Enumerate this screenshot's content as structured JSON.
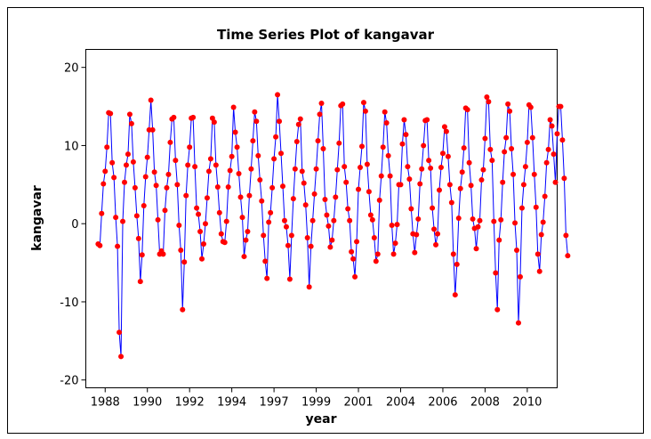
{
  "chart_data": {
    "type": "line",
    "title": "Time Series Plot of kangavar",
    "x_label": "year",
    "y_label": "kangavar",
    "series": [
      {
        "name": "kangavar",
        "color": "#0000ff",
        "marker_color": "#ff0000",
        "values": [
          -2.6,
          -2.8,
          1.3,
          5.1,
          6.7,
          9.8,
          14.2,
          14.1,
          7.8,
          5.9,
          0.8,
          -2.9,
          -13.9,
          -17.0,
          0.3,
          5.3,
          7.5,
          8.9,
          14.0,
          12.8,
          7.9,
          4.6,
          1.0,
          -1.9,
          -7.4,
          -4.0,
          2.3,
          6.0,
          8.5,
          12.0,
          15.8,
          12.0,
          6.6,
          4.9,
          0.5,
          -3.9,
          -3.5,
          -3.9,
          1.7,
          4.6,
          6.3,
          10.4,
          13.4,
          13.6,
          8.1,
          5.0,
          -0.2,
          -3.4,
          -11.0,
          -4.9,
          3.6,
          7.5,
          9.8,
          13.5,
          13.6,
          7.3,
          2.0,
          1.2,
          -1.0,
          -4.5,
          -2.6,
          0.0,
          3.3,
          6.7,
          8.3,
          13.5,
          13.0,
          7.5,
          4.7,
          1.4,
          -1.3,
          -2.3,
          -2.4,
          0.3,
          4.7,
          6.8,
          8.6,
          14.9,
          11.7,
          9.8,
          6.4,
          3.4,
          0.8,
          -4.2,
          -2.1,
          -1.0,
          3.6,
          7.0,
          10.6,
          14.3,
          13.1,
          8.7,
          5.6,
          2.9,
          -1.5,
          -4.8,
          -7.0,
          0.2,
          1.4,
          4.6,
          8.3,
          11.1,
          16.5,
          13.1,
          9.0,
          4.8,
          0.4,
          -0.4,
          -2.8,
          -7.1,
          -1.5,
          3.2,
          7.0,
          10.5,
          12.7,
          13.4,
          6.7,
          5.2,
          2.4,
          -1.8,
          -8.1,
          -2.9,
          0.4,
          3.8,
          7.0,
          10.6,
          14.0,
          15.4,
          9.6,
          3.1,
          1.1,
          -0.3,
          -3.0,
          -2.1,
          0.4,
          3.4,
          6.9,
          10.3,
          15.1,
          15.3,
          7.3,
          5.3,
          1.9,
          0.4,
          -3.6,
          -4.5,
          -6.8,
          -2.3,
          4.4,
          7.2,
          9.9,
          15.5,
          14.4,
          7.6,
          4.1,
          1.1,
          0.5,
          -1.8,
          -4.8,
          -3.9,
          3.0,
          6.1,
          9.8,
          14.3,
          12.9,
          8.7,
          6.1,
          -0.2,
          -3.9,
          -2.5,
          -0.1,
          5.0,
          5.0,
          10.2,
          13.3,
          11.4,
          7.3,
          5.7,
          1.9,
          -1.3,
          -3.7,
          -1.4,
          0.6,
          5.1,
          7.0,
          10.0,
          13.2,
          13.3,
          8.1,
          7.1,
          2.0,
          -0.7,
          -2.7,
          -1.3,
          4.3,
          7.2,
          9.0,
          12.4,
          11.8,
          8.6,
          5.0,
          2.7,
          -3.9,
          -9.1,
          -5.2,
          0.7,
          4.5,
          6.6,
          9.7,
          14.8,
          14.6,
          7.8,
          4.9,
          0.6,
          -0.6,
          -3.2,
          -0.4,
          0.4,
          5.6,
          6.9,
          10.9,
          16.2,
          15.6,
          9.5,
          8.1,
          0.3,
          -6.3,
          -11.0,
          -2.1,
          0.5,
          5.3,
          9.2,
          11.0,
          15.3,
          14.4,
          9.6,
          6.3,
          0.1,
          -3.4,
          -12.7,
          -6.8,
          2.0,
          5.0,
          7.3,
          10.4,
          15.2,
          14.9,
          11.0,
          6.3,
          2.1,
          -3.9,
          -6.1,
          -1.4,
          0.2,
          3.5,
          7.8,
          9.5,
          13.3,
          12.5,
          8.9,
          5.3,
          11.5,
          15.0,
          15.0,
          10.7,
          5.8,
          -1.5,
          -4.1
        ]
      }
    ],
    "xlim": [
      -6,
      262
    ],
    "xticks": [
      {
        "value": 5,
        "label": "1988"
      },
      {
        "value": 29,
        "label": "1990"
      },
      {
        "value": 53,
        "label": "1992"
      },
      {
        "value": 77,
        "label": "1994"
      },
      {
        "value": 101,
        "label": "1997"
      },
      {
        "value": 125,
        "label": "1999"
      },
      {
        "value": 149,
        "label": "2001"
      },
      {
        "value": 173,
        "label": "2004"
      },
      {
        "value": 197,
        "label": "2006"
      },
      {
        "value": 221,
        "label": "2008"
      },
      {
        "value": 245,
        "label": "2010"
      }
    ],
    "ylim": [
      -21,
      22.3
    ],
    "yticks": [
      -20,
      -10,
      0,
      10,
      20
    ],
    "grid": false
  }
}
